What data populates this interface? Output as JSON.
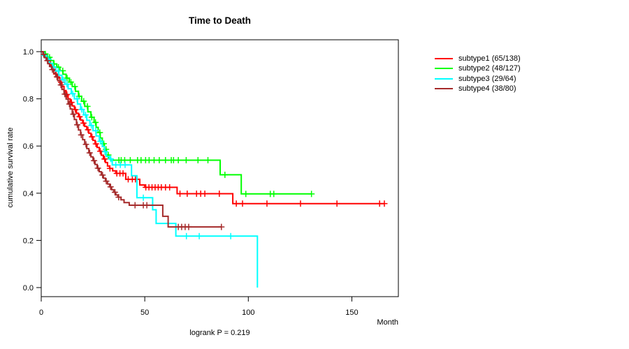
{
  "title": "Time to Death",
  "footnote": "logrank P = 0.219",
  "chart_data": {
    "type": "line",
    "subtype": "kaplan-meier-step",
    "title": "Time to Death",
    "xlabel": "Month",
    "ylabel": "cumulative survival rate",
    "xlim": [
      0,
      172
    ],
    "ylim": [
      0.0,
      1.0
    ],
    "grid": false,
    "legend_position": "right-outside",
    "logrank_p": "0.219",
    "footnote": "logrank P = 0.219",
    "x_axis": {
      "ticks": [
        {
          "v": 0,
          "label": "0"
        },
        {
          "v": 50,
          "label": "50"
        },
        {
          "v": 100,
          "label": "100"
        },
        {
          "v": 150,
          "label": "150"
        }
      ]
    },
    "y_axis": {
      "ticks": [
        {
          "v": 0.0,
          "label": "0.0"
        },
        {
          "v": 0.2,
          "label": "0.2"
        },
        {
          "v": 0.4,
          "label": "0.4"
        },
        {
          "v": 0.6,
          "label": "0.6"
        },
        {
          "v": 0.8,
          "label": "0.8"
        },
        {
          "v": 1.0,
          "label": "1.0"
        }
      ]
    },
    "series": [
      {
        "name": "subtype1",
        "label": "subtype1 (65/138)",
        "events": 65,
        "n": 138,
        "color": "#FF0000",
        "end": 165.7,
        "points": [
          [
            0,
            1.0
          ],
          [
            1,
            0.993
          ],
          [
            2,
            0.978
          ],
          [
            3,
            0.964
          ],
          [
            4,
            0.95
          ],
          [
            5,
            0.935
          ],
          [
            6,
            0.92
          ],
          [
            7,
            0.905
          ],
          [
            8,
            0.889
          ],
          [
            9,
            0.87
          ],
          [
            10,
            0.852
          ],
          [
            11,
            0.835
          ],
          [
            12,
            0.818
          ],
          [
            13,
            0.8
          ],
          [
            14,
            0.785
          ],
          [
            15,
            0.77
          ],
          [
            16,
            0.754
          ],
          [
            17,
            0.739
          ],
          [
            18,
            0.724
          ],
          [
            19,
            0.71
          ],
          [
            20,
            0.697
          ],
          [
            21,
            0.683
          ],
          [
            22,
            0.669
          ],
          [
            23,
            0.654
          ],
          [
            24,
            0.639
          ],
          [
            25,
            0.624
          ],
          [
            26,
            0.609
          ],
          [
            27,
            0.594
          ],
          [
            28,
            0.578
          ],
          [
            29,
            0.561
          ],
          [
            30,
            0.545
          ],
          [
            31,
            0.53
          ],
          [
            32,
            0.515
          ],
          [
            33,
            0.505
          ],
          [
            34.5,
            0.495
          ],
          [
            36,
            0.484
          ],
          [
            40.8,
            0.459
          ],
          [
            47.6,
            0.435
          ],
          [
            50,
            0.425
          ],
          [
            65.6,
            0.398
          ],
          [
            92.5,
            0.356
          ]
        ],
        "censors": [
          2.5,
          4.5,
          7.2,
          9.6,
          12.4,
          14.6,
          16.5,
          18.5,
          20.4,
          22.6,
          24.5,
          26.4,
          28.5,
          30.6,
          33.2,
          36.5,
          38,
          39.5,
          42,
          44,
          45.5,
          50.5,
          52,
          53.5,
          55,
          56.5,
          58,
          60,
          62,
          67,
          70.5,
          75,
          77,
          79,
          86,
          94.2,
          97.2,
          109,
          125.2,
          142.8,
          163.4,
          165.7
        ]
      },
      {
        "name": "subtype2",
        "label": "subtype2 (48/127)",
        "events": 48,
        "n": 127,
        "color": "#00FF00",
        "end": 130.5,
        "points": [
          [
            0,
            1.0
          ],
          [
            1.5,
            0.99
          ],
          [
            3,
            0.976
          ],
          [
            4.5,
            0.962
          ],
          [
            6,
            0.948
          ],
          [
            7.5,
            0.934
          ],
          [
            9,
            0.919
          ],
          [
            10.5,
            0.904
          ],
          [
            12,
            0.888
          ],
          [
            13.5,
            0.871
          ],
          [
            15,
            0.852
          ],
          [
            16.5,
            0.832
          ],
          [
            18,
            0.811
          ],
          [
            19.5,
            0.79
          ],
          [
            21,
            0.768
          ],
          [
            22.5,
            0.745
          ],
          [
            24,
            0.722
          ],
          [
            25.5,
            0.7
          ],
          [
            26.5,
            0.679
          ],
          [
            27.5,
            0.657
          ],
          [
            28.5,
            0.634
          ],
          [
            29.5,
            0.61
          ],
          [
            30.5,
            0.586
          ],
          [
            31.5,
            0.562
          ],
          [
            32.5,
            0.547
          ],
          [
            33.5,
            0.54
          ],
          [
            86.4,
            0.478
          ],
          [
            96.6,
            0.397
          ]
        ],
        "censors": [
          2,
          4,
          6.2,
          8.3,
          10.4,
          12.5,
          14.3,
          16.2,
          18.3,
          20.5,
          22.3,
          24.4,
          26.2,
          28.3,
          30.2,
          31.3,
          32.4,
          37.5,
          38.6,
          40.3,
          43,
          46.5,
          48.2,
          50.4,
          52.1,
          54.5,
          57,
          60,
          62.8,
          63.9,
          66.2,
          70,
          75.7,
          80.5,
          88.7,
          98.8,
          110.6,
          112.3,
          130.5
        ]
      },
      {
        "name": "subtype3",
        "label": "subtype3 (29/64)",
        "events": 29,
        "n": 64,
        "color": "#00FFFF",
        "end": 104.4,
        "points": [
          [
            0,
            1.0
          ],
          [
            1,
            0.984
          ],
          [
            2.5,
            0.968
          ],
          [
            4,
            0.951
          ],
          [
            5.5,
            0.935
          ],
          [
            7,
            0.918
          ],
          [
            8.5,
            0.9
          ],
          [
            10,
            0.881
          ],
          [
            11.5,
            0.862
          ],
          [
            13,
            0.843
          ],
          [
            14.5,
            0.822
          ],
          [
            16,
            0.8
          ],
          [
            17.5,
            0.778
          ],
          [
            19,
            0.755
          ],
          [
            20.5,
            0.732
          ],
          [
            22,
            0.709
          ],
          [
            23.5,
            0.687
          ],
          [
            25,
            0.665
          ],
          [
            26.5,
            0.643
          ],
          [
            28,
            0.62
          ],
          [
            29.5,
            0.598
          ],
          [
            30.5,
            0.576
          ],
          [
            31.5,
            0.556
          ],
          [
            33,
            0.545
          ],
          [
            34.3,
            0.52
          ],
          [
            43.6,
            0.474
          ],
          [
            46.2,
            0.381
          ],
          [
            53.8,
            0.33
          ],
          [
            55.5,
            0.272
          ],
          [
            65,
            0.218
          ],
          [
            104.4,
            0.0
          ]
        ],
        "censors": [
          1.5,
          3.5,
          5.8,
          8.2,
          10.6,
          12.4,
          15.2,
          17.3,
          19.6,
          21.4,
          24.2,
          26.3,
          28.6,
          30.8,
          33.6,
          36,
          38.2,
          40.5,
          49.3,
          70.1,
          76.3,
          91.5
        ]
      },
      {
        "name": "subtype4",
        "label": "subtype4 (38/80)",
        "events": 38,
        "n": 80,
        "color": "#A52A2A",
        "end": 87,
        "points": [
          [
            0,
            1.0
          ],
          [
            0.8,
            0.988
          ],
          [
            1.6,
            0.975
          ],
          [
            2.4,
            0.962
          ],
          [
            3.2,
            0.949
          ],
          [
            4,
            0.937
          ],
          [
            5,
            0.924
          ],
          [
            6,
            0.909
          ],
          [
            7,
            0.893
          ],
          [
            8,
            0.877
          ],
          [
            9,
            0.859
          ],
          [
            10,
            0.84
          ],
          [
            11,
            0.82
          ],
          [
            12,
            0.799
          ],
          [
            13,
            0.778
          ],
          [
            14,
            0.757
          ],
          [
            15,
            0.735
          ],
          [
            16,
            0.712
          ],
          [
            17,
            0.69
          ],
          [
            18,
            0.668
          ],
          [
            19,
            0.647
          ],
          [
            20,
            0.627
          ],
          [
            21,
            0.607
          ],
          [
            22,
            0.589
          ],
          [
            23,
            0.571
          ],
          [
            24,
            0.554
          ],
          [
            25,
            0.538
          ],
          [
            26,
            0.522
          ],
          [
            27,
            0.506
          ],
          [
            28,
            0.491
          ],
          [
            29,
            0.477
          ],
          [
            30,
            0.464
          ],
          [
            31,
            0.451
          ],
          [
            32,
            0.439
          ],
          [
            33,
            0.427
          ],
          [
            34,
            0.415
          ],
          [
            35,
            0.404
          ],
          [
            36,
            0.393
          ],
          [
            37,
            0.383
          ],
          [
            38.5,
            0.372
          ],
          [
            40,
            0.36
          ],
          [
            42.5,
            0.349
          ],
          [
            58.7,
            0.302
          ],
          [
            61.3,
            0.257
          ]
        ],
        "censors": [
          1.2,
          3,
          5.4,
          7.6,
          9.5,
          11.4,
          13.6,
          15.5,
          17.4,
          19.3,
          21.6,
          23.4,
          25.5,
          27.4,
          29.6,
          31.4,
          33.5,
          35.6,
          37.4,
          45.3,
          49.3,
          51,
          66.2,
          67.8,
          69.5,
          71.2,
          87
        ]
      }
    ]
  }
}
